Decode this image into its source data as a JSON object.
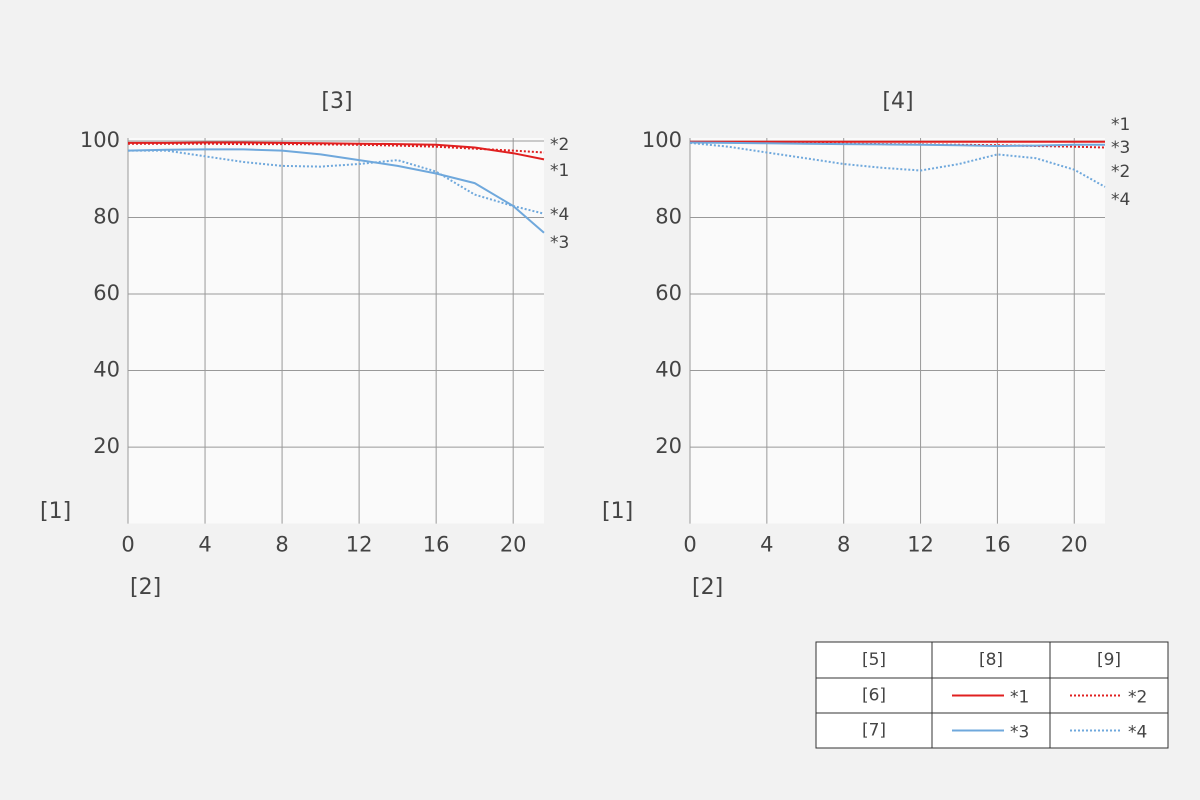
{
  "chart_data": [
    {
      "type": "line",
      "title": "[3]",
      "xlabel": "[2]",
      "ylabel": "[1]",
      "x": [
        0,
        2,
        4,
        6,
        8,
        10,
        12,
        14,
        16,
        18,
        20,
        21.6
      ],
      "xlim": [
        0,
        21.6
      ],
      "xticks": [
        0,
        4,
        8,
        12,
        16,
        20
      ],
      "ylim": [
        0,
        100
      ],
      "yticks": [
        20,
        40,
        60,
        80,
        100
      ],
      "grid": true,
      "series": [
        {
          "name": "*1",
          "color": "#e02020",
          "style": "solid",
          "values": [
            99.5,
            99.5,
            99.6,
            99.6,
            99.5,
            99.4,
            99.3,
            99.2,
            99.0,
            98.3,
            96.8,
            95.2
          ]
        },
        {
          "name": "*2",
          "color": "#e02020",
          "style": "dotted",
          "values": [
            99.3,
            99.3,
            99.3,
            99.2,
            99.2,
            99.1,
            99.0,
            98.8,
            98.5,
            98.0,
            97.5,
            97.0
          ]
        },
        {
          "name": "*3",
          "color": "#6fa8dc",
          "style": "solid",
          "values": [
            97.5,
            97.7,
            97.8,
            97.8,
            97.5,
            96.5,
            95.0,
            93.5,
            91.5,
            89.0,
            83.0,
            76.0
          ]
        },
        {
          "name": "*4",
          "color": "#6fa8dc",
          "style": "dotted",
          "values": [
            97.5,
            97.5,
            96.0,
            94.5,
            93.5,
            93.3,
            94.0,
            95.0,
            92.0,
            86.0,
            83.0,
            81.0
          ]
        }
      ]
    },
    {
      "type": "line",
      "title": "[4]",
      "xlabel": "[2]",
      "ylabel": "[1]",
      "x": [
        0,
        2,
        4,
        6,
        8,
        10,
        12,
        14,
        16,
        18,
        20,
        21.6
      ],
      "xlim": [
        0,
        21.6
      ],
      "xticks": [
        0,
        4,
        8,
        12,
        16,
        20
      ],
      "ylim": [
        0,
        100
      ],
      "yticks": [
        20,
        40,
        60,
        80,
        100
      ],
      "grid": true,
      "series": [
        {
          "name": "*1",
          "color": "#e02020",
          "style": "solid",
          "values": [
            99.8,
            99.8,
            99.8,
            99.8,
            99.8,
            99.8,
            99.8,
            99.8,
            99.8,
            99.8,
            99.8,
            99.8
          ]
        },
        {
          "name": "*2",
          "color": "#e02020",
          "style": "dotted",
          "values": [
            99.7,
            99.6,
            99.5,
            99.4,
            99.3,
            99.2,
            99.1,
            99.0,
            98.9,
            98.7,
            98.5,
            98.3
          ]
        },
        {
          "name": "*3",
          "color": "#6fa8dc",
          "style": "solid",
          "values": [
            99.6,
            99.5,
            99.4,
            99.3,
            99.2,
            99.1,
            99.0,
            98.9,
            98.7,
            98.8,
            99.0,
            99.0
          ]
        },
        {
          "name": "*4",
          "color": "#6fa8dc",
          "style": "dotted",
          "values": [
            99.5,
            98.5,
            97.0,
            95.5,
            94.0,
            93.0,
            92.3,
            94.0,
            96.5,
            95.5,
            92.5,
            88.0
          ]
        }
      ]
    }
  ],
  "legend_table": {
    "columns": [
      "[5]",
      "[8]",
      "[9]"
    ],
    "rows": [
      "[6]",
      "[7]"
    ]
  }
}
